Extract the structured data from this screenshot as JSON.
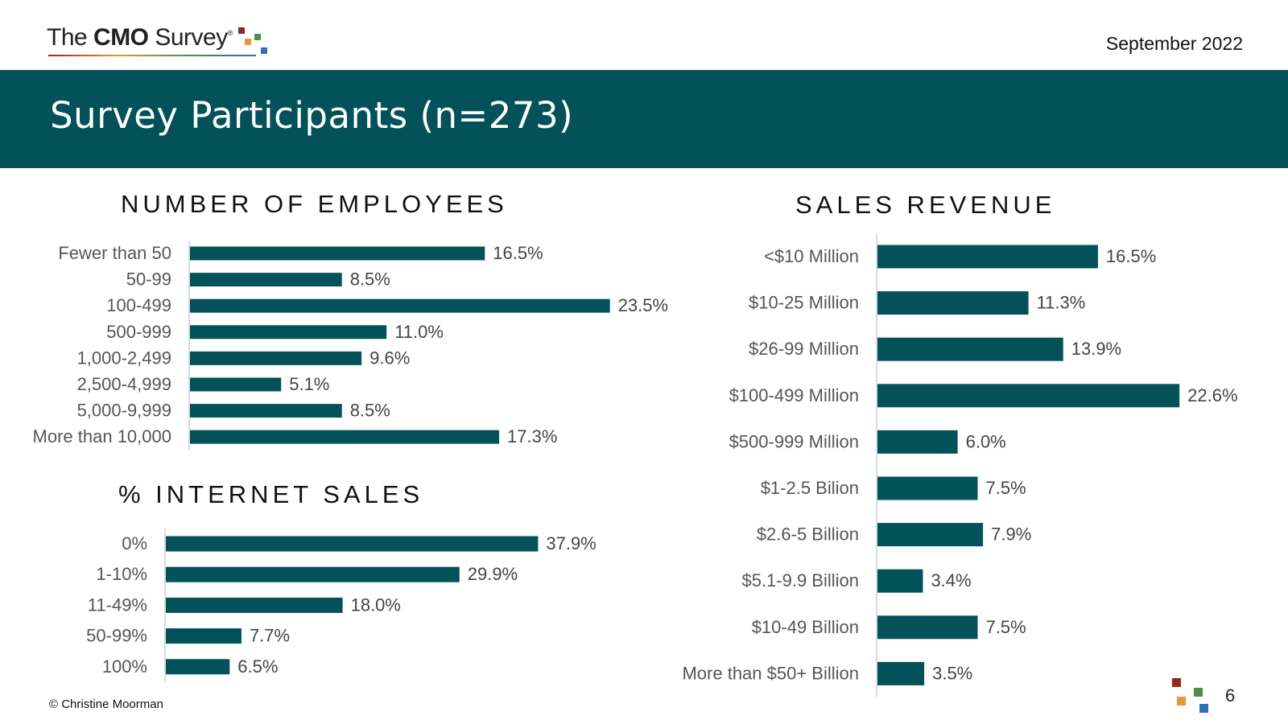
{
  "header": {
    "logo_text_pre": "The ",
    "logo_text_bold": "CMO",
    "logo_text_post": " Survey",
    "logo_reg": "®",
    "date": "September 2022",
    "title": "Survey Participants (n=273)"
  },
  "colors": {
    "banner": "#035159",
    "bar": "#035159"
  },
  "footer": {
    "copyright": "© Christine Moorman",
    "page_number": "6"
  },
  "chart_data": [
    {
      "type": "bar",
      "orientation": "horizontal",
      "title": "NUMBER OF EMPLOYEES",
      "categories": [
        "Fewer than 50",
        "50-99",
        "100-499",
        "500-999",
        "1,000-2,499",
        "2,500-4,999",
        "5,000-9,999",
        "More than 10,000"
      ],
      "values": [
        16.5,
        8.5,
        23.5,
        11.0,
        9.6,
        5.1,
        8.5,
        17.3
      ],
      "labels": [
        "16.5%",
        "8.5%",
        "23.5%",
        "11.0%",
        "9.6%",
        "5.1%",
        "8.5%",
        "17.3%"
      ]
    },
    {
      "type": "bar",
      "orientation": "horizontal",
      "title": "% INTERNET SALES",
      "categories": [
        "0%",
        "1-10%",
        "11-49%",
        "50-99%",
        "100%"
      ],
      "values": [
        37.9,
        29.9,
        18.0,
        7.7,
        6.5
      ],
      "labels": [
        "37.9%",
        "29.9%",
        "18.0%",
        "7.7%",
        "6.5%"
      ]
    },
    {
      "type": "bar",
      "orientation": "horizontal",
      "title": "SALES REVENUE",
      "categories": [
        "<$10 Million",
        "$10-25 Million",
        "$26-99 Million",
        "$100-499 Million",
        "$500-999 Million",
        "$1-2.5 Bilion",
        "$2.6-5 Billion",
        "$5.1-9.9 Billion",
        "$10-49 Billion",
        "More than $50+ Billion"
      ],
      "values": [
        16.5,
        11.3,
        13.9,
        22.6,
        6.0,
        7.5,
        7.9,
        3.4,
        7.5,
        3.5
      ],
      "labels": [
        "16.5%",
        "11.3%",
        "13.9%",
        "22.6%",
        "6.0%",
        "7.5%",
        "7.9%",
        "3.4%",
        "7.5%",
        "3.5%"
      ]
    }
  ]
}
